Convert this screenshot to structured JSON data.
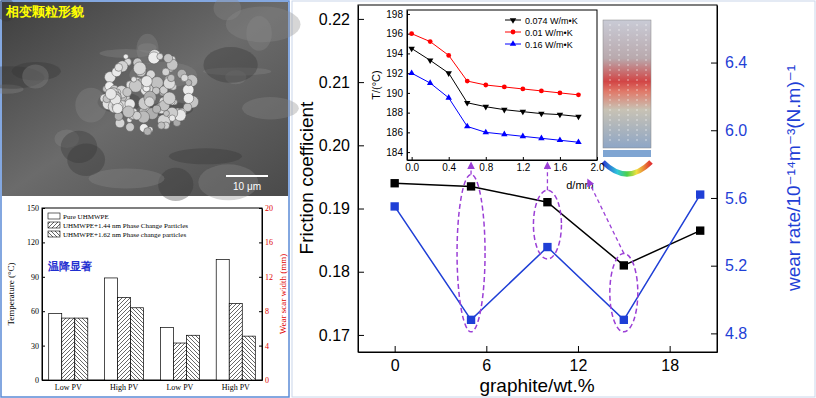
{
  "chart_data": [
    {
      "type": "line",
      "x_label": "graphite/wt.%",
      "y_label": "Friction coefficient",
      "y2_label": "wear rate/10⁻¹⁴m⁻³(N.m)⁻¹",
      "x": [
        0,
        5,
        10,
        15,
        20
      ],
      "series": [
        {
          "color": "#000000",
          "marker": "square",
          "values": [
            0.194,
            0.1935,
            0.191,
            0.181,
            0.1865
          ]
        },
        {
          "color": "#1f3fd6",
          "marker": "square",
          "axis": "y2",
          "values": [
            5.55,
            4.88,
            5.31,
            4.88,
            5.62
          ]
        }
      ],
      "xlim": [
        -2.4,
        21.1
      ],
      "xticks": [
        0,
        6,
        12,
        18
      ],
      "ylim": [
        0.1673,
        0.2222
      ],
      "yticks": [
        0.17,
        0.18,
        0.19,
        {
          "value": 0.2,
          "label": "0.20"
        },
        0.21,
        0.22
      ],
      "y2lim": [
        4.69,
        6.74
      ],
      "y2ticks": [
        4.8,
        5.2,
        5.6,
        {
          "value": 6,
          "label": "6.0"
        },
        6.4
      ]
    },
    {
      "type": "line",
      "x_label": "d/mm",
      "y_label": "T/(°C)",
      "x": [
        0,
        0.2,
        0.4,
        0.6,
        0.8,
        1.0,
        1.2,
        1.4,
        1.6,
        1.8
      ],
      "series": [
        {
          "name": "0.074 W/m•K",
          "color": "#000000",
          "marker": "triangle-down",
          "values": [
            194.5,
            193.3,
            192.0,
            189.0,
            188.6,
            188.3,
            188.1,
            187.9,
            187.8,
            187.6
          ]
        },
        {
          "name": "0.01 W/m•K",
          "color": "#ff0000",
          "marker": "circle",
          "values": [
            196.0,
            195.2,
            193.8,
            191.2,
            190.8,
            190.6,
            190.4,
            190.2,
            190.0,
            189.8
          ]
        },
        {
          "name": "0.16 W/m•K",
          "color": "#0000ff",
          "marker": "triangle-up",
          "values": [
            192.0,
            191.0,
            189.5,
            186.6,
            186.0,
            185.8,
            185.6,
            185.4,
            185.2,
            185.0
          ]
        }
      ],
      "xlim": [
        -0.05,
        2.0
      ],
      "xticks": [
        {
          "value": 0,
          "label": "0.0"
        },
        0.4,
        0.8,
        1.2,
        1.6,
        {
          "value": 2,
          "label": "2.0"
        }
      ],
      "ylim": [
        183.2,
        198.4
      ],
      "yticks": [
        184,
        186,
        188,
        190,
        192,
        194,
        196,
        198
      ],
      "legend": "upper right"
    },
    {
      "type": "bar",
      "y_label": "Temperature (°C)",
      "y2_label": "Wear scar width (mm)",
      "categories": [
        "Low PV",
        "High PV",
        "Low PV",
        "High PV"
      ],
      "series": [
        {
          "name": "Pure UHMWPE",
          "color": "#ffffff",
          "values": [
            58,
            89,
            null,
            null
          ]
        },
        {
          "name": "UHMWPE+1.44 nm Phase Change Particles",
          "color": "#ffffff",
          "values": [
            54,
            72,
            null,
            null
          ]
        },
        {
          "name": "UHMWPE+1.62 nm Phase change particles",
          "color": "#ffffff",
          "values": [
            54,
            63,
            null,
            null
          ]
        },
        {
          "name": "Pure UHMWPE",
          "color": "#ffffff",
          "axis": "y2",
          "values": [
            null,
            null,
            6.1,
            14.0
          ]
        },
        {
          "name": "UHMWPE+1.44 nm Phase Change Particles",
          "color": "#ffffff",
          "axis": "y2",
          "values": [
            null,
            null,
            4.3,
            8.9
          ]
        },
        {
          "name": "UHMWPE+1.62 nm Phase change particles",
          "color": "#ffffff",
          "axis": "y2",
          "values": [
            null,
            null,
            5.2,
            5.1
          ]
        }
      ],
      "ylim": [
        0,
        150
      ],
      "yticks": [
        0,
        30,
        60,
        90,
        120,
        150
      ],
      "y2lim": [
        0,
        20
      ],
      "y2ticks": [
        0,
        4,
        8,
        12,
        16,
        20
      ],
      "legend": "upper left",
      "annotations": [
        "温降显著"
      ]
    }
  ],
  "photo": {
    "title": "相变颗粒形貌",
    "scale_bar": "10 μm"
  }
}
